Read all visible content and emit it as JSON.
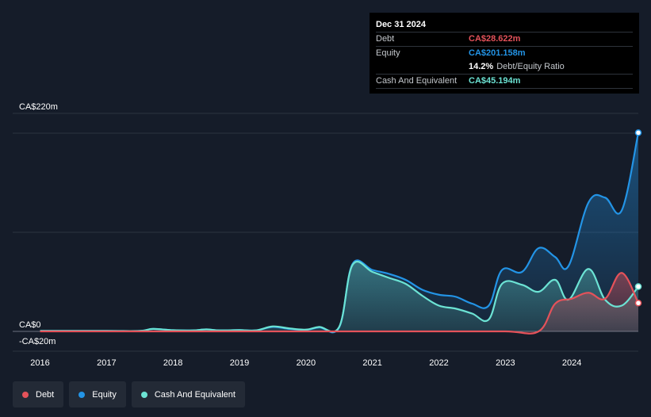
{
  "tooltip": {
    "date": "Dec 31 2024",
    "debt_label": "Debt",
    "debt_value": "CA$28.622m",
    "equity_label": "Equity",
    "equity_value": "CA$201.158m",
    "ratio_value": "14.2%",
    "ratio_label": "Debt/Equity Ratio",
    "cash_label": "Cash And Equivalent",
    "cash_value": "CA$45.194m"
  },
  "legend": {
    "debt": "Debt",
    "equity": "Equity",
    "cash": "Cash And Equivalent"
  },
  "colors": {
    "debt": "#e4525a",
    "equity": "#2394e6",
    "cash": "#6ce3d4",
    "background": "#151c29"
  },
  "chart_data": {
    "type": "area",
    "title": "",
    "xlabel": "",
    "ylabel": "",
    "y_tick_labels": [
      "CA$220m",
      "CA$0",
      "-CA$20m"
    ],
    "y_ticks": [
      220,
      0,
      -20
    ],
    "ylim": [
      -20,
      220
    ],
    "x_ticks": [
      "2016",
      "2017",
      "2018",
      "2019",
      "2020",
      "2021",
      "2022",
      "2023",
      "2024"
    ],
    "xlim": [
      2015.97,
      2025.0
    ],
    "grid": true,
    "legend_position": "bottom-left",
    "series": [
      {
        "name": "Equity",
        "key": "equity",
        "points": [
          [
            2016.0,
            0.5
          ],
          [
            2017.0,
            0.5
          ],
          [
            2017.5,
            0.5
          ],
          [
            2017.7,
            2.5
          ],
          [
            2018.0,
            1.2
          ],
          [
            2018.3,
            1.0
          ],
          [
            2018.5,
            2.0
          ],
          [
            2018.7,
            1.0
          ],
          [
            2019.0,
            1.3
          ],
          [
            2019.25,
            1.0
          ],
          [
            2019.5,
            4.5
          ],
          [
            2019.75,
            2.5
          ],
          [
            2020.0,
            1.5
          ],
          [
            2020.2,
            4.0
          ],
          [
            2020.5,
            4.0
          ],
          [
            2020.7,
            68.0
          ],
          [
            2021.0,
            62.0
          ],
          [
            2021.25,
            58.0
          ],
          [
            2021.5,
            52.0
          ],
          [
            2021.75,
            42.0
          ],
          [
            2022.0,
            37.0
          ],
          [
            2022.25,
            35.0
          ],
          [
            2022.5,
            28.0
          ],
          [
            2022.75,
            26.0
          ],
          [
            2022.95,
            62.0
          ],
          [
            2023.25,
            60.0
          ],
          [
            2023.5,
            84.0
          ],
          [
            2023.75,
            75.0
          ],
          [
            2023.95,
            66.0
          ],
          [
            2024.25,
            130.0
          ],
          [
            2024.5,
            135.0
          ],
          [
            2024.75,
            122.0
          ],
          [
            2025.0,
            200.5
          ]
        ]
      },
      {
        "name": "Cash And Equivalent",
        "key": "cash",
        "points": [
          [
            2016.0,
            0.5
          ],
          [
            2017.0,
            0.5
          ],
          [
            2017.5,
            0.5
          ],
          [
            2017.7,
            2.5
          ],
          [
            2018.0,
            1.2
          ],
          [
            2018.3,
            1.0
          ],
          [
            2018.5,
            2.0
          ],
          [
            2018.7,
            1.0
          ],
          [
            2019.0,
            1.3
          ],
          [
            2019.25,
            1.0
          ],
          [
            2019.5,
            5.0
          ],
          [
            2019.75,
            3.0
          ],
          [
            2020.0,
            1.8
          ],
          [
            2020.2,
            4.5
          ],
          [
            2020.5,
            4.5
          ],
          [
            2020.7,
            67.0
          ],
          [
            2021.0,
            60.0
          ],
          [
            2021.25,
            54.0
          ],
          [
            2021.5,
            48.0
          ],
          [
            2021.75,
            36.0
          ],
          [
            2022.0,
            26.0
          ],
          [
            2022.25,
            23.0
          ],
          [
            2022.5,
            18.0
          ],
          [
            2022.75,
            12.0
          ],
          [
            2022.95,
            48.0
          ],
          [
            2023.25,
            47.0
          ],
          [
            2023.5,
            40.0
          ],
          [
            2023.75,
            52.0
          ],
          [
            2023.95,
            32.0
          ],
          [
            2024.25,
            63.0
          ],
          [
            2024.5,
            32.0
          ],
          [
            2024.75,
            26.0
          ],
          [
            2025.0,
            45.2
          ]
        ]
      },
      {
        "name": "Debt",
        "key": "debt",
        "points": [
          [
            2016.0,
            0.0
          ],
          [
            2017.0,
            0.0
          ],
          [
            2018.0,
            0.0
          ],
          [
            2019.0,
            0.0
          ],
          [
            2020.0,
            0.0
          ],
          [
            2021.0,
            0.0
          ],
          [
            2022.0,
            0.0
          ],
          [
            2023.0,
            0.0
          ],
          [
            2023.5,
            0.0
          ],
          [
            2023.75,
            28.0
          ],
          [
            2024.0,
            33.0
          ],
          [
            2024.25,
            39.0
          ],
          [
            2024.5,
            33.0
          ],
          [
            2024.75,
            59.0
          ],
          [
            2025.0,
            28.6
          ]
        ]
      }
    ]
  }
}
